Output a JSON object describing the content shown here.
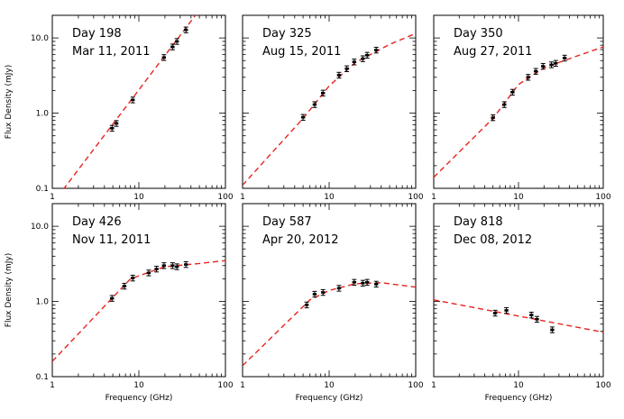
{
  "chart_data": [
    {
      "type": "scatter",
      "title": "Day 198",
      "subtitle": "Mar 11, 2011",
      "xlabel": "",
      "ylabel": "Flux Density (mJy)",
      "xscale": "log",
      "yscale": "log",
      "xlim": [
        1,
        100
      ],
      "ylim": [
        0.1,
        20
      ],
      "points": [
        {
          "x": 4.9,
          "y": 0.63
        },
        {
          "x": 5.5,
          "y": 0.73
        },
        {
          "x": 8.5,
          "y": 1.5
        },
        {
          "x": 19.5,
          "y": 5.5
        },
        {
          "x": 24.5,
          "y": 7.6
        },
        {
          "x": 27.5,
          "y": 9.0
        },
        {
          "x": 35.0,
          "y": 12.8
        }
      ],
      "model": [
        {
          "x": 1,
          "y": 0.062
        },
        {
          "x": 45,
          "y": 20
        }
      ]
    },
    {
      "type": "scatter",
      "title": "Day 325",
      "subtitle": "Aug 15, 2011",
      "xlabel": "",
      "ylabel": "",
      "xscale": "log",
      "yscale": "log",
      "xlim": [
        1,
        100
      ],
      "ylim": [
        0.1,
        20
      ],
      "points": [
        {
          "x": 5.0,
          "y": 0.88
        },
        {
          "x": 6.8,
          "y": 1.3
        },
        {
          "x": 8.5,
          "y": 1.85
        },
        {
          "x": 13.0,
          "y": 3.2
        },
        {
          "x": 16.0,
          "y": 3.9
        },
        {
          "x": 19.5,
          "y": 4.8
        },
        {
          "x": 24.5,
          "y": 5.3
        },
        {
          "x": 27.5,
          "y": 5.9
        },
        {
          "x": 35.0,
          "y": 6.9
        }
      ],
      "model": [
        {
          "x": 1,
          "y": 0.11
        },
        {
          "x": 5,
          "y": 0.85
        },
        {
          "x": 10,
          "y": 2.3
        },
        {
          "x": 20,
          "y": 4.7
        },
        {
          "x": 50,
          "y": 8.2
        },
        {
          "x": 100,
          "y": 11.5
        }
      ]
    },
    {
      "type": "scatter",
      "title": "Day 350",
      "subtitle": "Aug 27, 2011",
      "xlabel": "",
      "ylabel": "",
      "xscale": "log",
      "yscale": "log",
      "xlim": [
        1,
        100
      ],
      "ylim": [
        0.1,
        20
      ],
      "points": [
        {
          "x": 5.0,
          "y": 0.87
        },
        {
          "x": 6.8,
          "y": 1.3
        },
        {
          "x": 8.5,
          "y": 1.9
        },
        {
          "x": 13.0,
          "y": 3.0
        },
        {
          "x": 16.0,
          "y": 3.6
        },
        {
          "x": 19.5,
          "y": 4.2
        },
        {
          "x": 24.5,
          "y": 4.4
        },
        {
          "x": 27.5,
          "y": 4.6
        },
        {
          "x": 35.0,
          "y": 5.4
        }
      ],
      "model": [
        {
          "x": 1,
          "y": 0.14
        },
        {
          "x": 5,
          "y": 0.85
        },
        {
          "x": 10,
          "y": 2.4
        },
        {
          "x": 20,
          "y": 4.0
        },
        {
          "x": 50,
          "y": 5.8
        },
        {
          "x": 100,
          "y": 7.6
        }
      ]
    },
    {
      "type": "scatter",
      "title": "Day 426",
      "subtitle": "Nov 11, 2011",
      "xlabel": "Frequency (GHz)",
      "ylabel": "Flux Density (mJy)",
      "xscale": "log",
      "yscale": "log",
      "xlim": [
        1,
        100
      ],
      "ylim": [
        0.1,
        20
      ],
      "points": [
        {
          "x": 4.9,
          "y": 1.1
        },
        {
          "x": 6.8,
          "y": 1.6
        },
        {
          "x": 8.5,
          "y": 2.05
        },
        {
          "x": 13.0,
          "y": 2.4
        },
        {
          "x": 16.0,
          "y": 2.7
        },
        {
          "x": 19.5,
          "y": 3.0
        },
        {
          "x": 24.5,
          "y": 3.0
        },
        {
          "x": 27.5,
          "y": 2.9
        },
        {
          "x": 35.0,
          "y": 3.1
        }
      ],
      "model": [
        {
          "x": 1,
          "y": 0.16
        },
        {
          "x": 8,
          "y": 2.0
        },
        {
          "x": 20,
          "y": 2.9
        },
        {
          "x": 50,
          "y": 3.2
        },
        {
          "x": 100,
          "y": 3.5
        }
      ]
    },
    {
      "type": "scatter",
      "title": "Day 587",
      "subtitle": "Apr 20, 2012",
      "xlabel": "Frequency (GHz)",
      "ylabel": "",
      "xscale": "log",
      "yscale": "log",
      "xlim": [
        1,
        100
      ],
      "ylim": [
        0.1,
        20
      ],
      "points": [
        {
          "x": 5.5,
          "y": 0.9
        },
        {
          "x": 6.8,
          "y": 1.25
        },
        {
          "x": 8.5,
          "y": 1.32
        },
        {
          "x": 13.0,
          "y": 1.5
        },
        {
          "x": 19.5,
          "y": 1.8
        },
        {
          "x": 24.5,
          "y": 1.75
        },
        {
          "x": 27.5,
          "y": 1.8
        },
        {
          "x": 35.0,
          "y": 1.7
        }
      ],
      "model": [
        {
          "x": 1,
          "y": 0.14
        },
        {
          "x": 6,
          "y": 1.05
        },
        {
          "x": 10,
          "y": 1.4
        },
        {
          "x": 20,
          "y": 1.72
        },
        {
          "x": 40,
          "y": 1.78
        },
        {
          "x": 100,
          "y": 1.55
        }
      ]
    },
    {
      "type": "scatter",
      "title": "Day 818",
      "subtitle": "Dec 08, 2012",
      "xlabel": "Frequency (GHz)",
      "ylabel": "",
      "xscale": "log",
      "yscale": "log",
      "xlim": [
        1,
        100
      ],
      "ylim": [
        0.1,
        20
      ],
      "points": [
        {
          "x": 5.3,
          "y": 0.7
        },
        {
          "x": 7.2,
          "y": 0.76
        },
        {
          "x": 14.2,
          "y": 0.66
        },
        {
          "x": 16.5,
          "y": 0.58
        },
        {
          "x": 25.0,
          "y": 0.42
        }
      ],
      "model": [
        {
          "x": 1,
          "y": 1.05
        },
        {
          "x": 100,
          "y": 0.39
        }
      ]
    }
  ],
  "colors": {
    "model": "#e8231f",
    "points": "#000000",
    "axes": "#000000"
  }
}
